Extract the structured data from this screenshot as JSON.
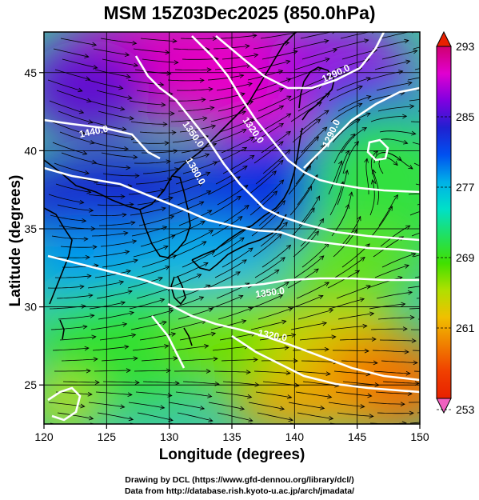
{
  "title": "MSM 15Z03Dec2025 (850.0hPa)",
  "x_axis": {
    "label": "Longitude (degrees)",
    "range": [
      120,
      150
    ],
    "ticks": [
      "120",
      "125",
      "130",
      "135",
      "140",
      "145",
      "150"
    ]
  },
  "y_axis": {
    "label": "Latitude  (degrees)",
    "range": [
      22.5,
      47.6
    ],
    "ticks": [
      "25",
      "30",
      "35",
      "40",
      "45"
    ]
  },
  "colorbar": {
    "range": [
      253,
      293
    ],
    "tick_labels": [
      "293",
      "285",
      "277",
      "269",
      "261",
      "253"
    ],
    "colors": [
      "#d00070",
      "#e000d0",
      "#8000e0",
      "#2020d0",
      "#0050f0",
      "#00b0e8",
      "#00e0c8",
      "#20e060",
      "#40e000",
      "#b0e000",
      "#f0c000",
      "#f08000",
      "#f04000",
      "#e82000"
    ]
  },
  "contours": {
    "color": "#ffffff",
    "labels": [
      "1440.0",
      "1350.0",
      "1380.0",
      "1320.0",
      "1290.0",
      "1290.0",
      "1350.0",
      "1320.0"
    ]
  },
  "credits": {
    "line1": "Drawing by DCL (https://www.gfd-dennou.org/library/dcl/)",
    "line2": "Data from http://database.rish.kyoto-u.ac.jp/arch/jmadata/"
  }
}
